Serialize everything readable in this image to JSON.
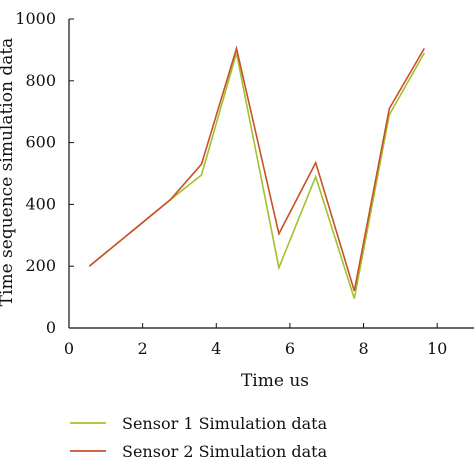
{
  "chart_data": {
    "type": "line",
    "title": "",
    "xlabel": "Time us",
    "ylabel": "Time sequence simulation data",
    "xlim": [
      0,
      11
    ],
    "ylim": [
      0,
      1000
    ],
    "xticks": [
      0,
      2,
      4,
      6,
      8,
      10
    ],
    "yticks": [
      0,
      200,
      400,
      600,
      800,
      1000
    ],
    "grid": false,
    "legend_position": "bottom",
    "series": [
      {
        "name": "Sensor 1 Simulation data",
        "color": "#a4c02a",
        "x": [
          0.55,
          2.75,
          3.6,
          4.55,
          5.7,
          6.7,
          7.75,
          8.7,
          9.65
        ],
        "y": [
          200,
          415,
          495,
          890,
          195,
          490,
          95,
          690,
          890
        ]
      },
      {
        "name": "Sensor 2 Simulation data",
        "color": "#c8502a",
        "x": [
          0.55,
          2.75,
          3.6,
          4.55,
          5.7,
          6.7,
          7.75,
          8.7,
          9.65
        ],
        "y": [
          200,
          415,
          530,
          905,
          305,
          535,
          120,
          710,
          905
        ]
      }
    ]
  }
}
